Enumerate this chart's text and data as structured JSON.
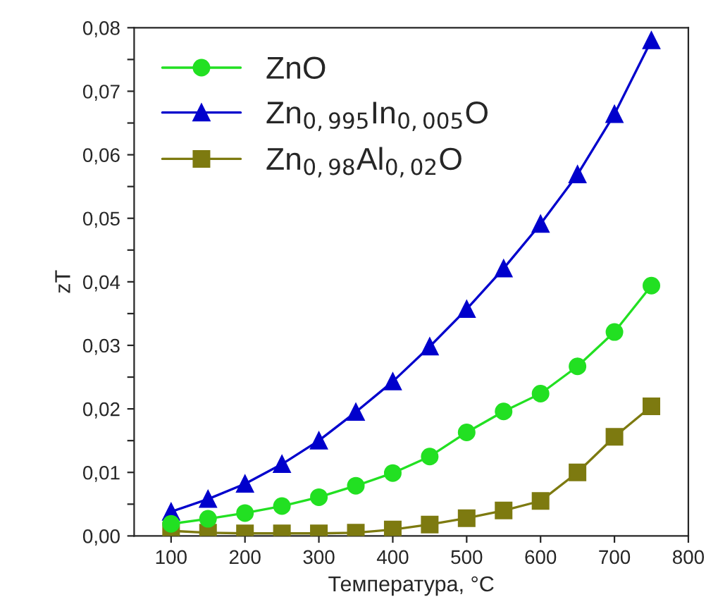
{
  "chart_data": {
    "type": "line",
    "xlabel": "Температура, °C",
    "ylabel": "zT",
    "x": [
      100,
      150,
      200,
      250,
      300,
      350,
      400,
      450,
      500,
      550,
      600,
      650,
      700,
      750
    ],
    "series": [
      {
        "name": "ZnO",
        "color": "#22e022",
        "marker": "circle",
        "values": [
          0.0019,
          0.0027,
          0.0036,
          0.0047,
          0.0061,
          0.0079,
          0.0099,
          0.0125,
          0.0163,
          0.0196,
          0.0224,
          0.0267,
          0.0321,
          0.0394
        ]
      },
      {
        "name": "Zn$_{0,995}$In$_{0,005}$O",
        "color": "#0000cc",
        "marker": "triangle",
        "values": [
          0.0038,
          0.0058,
          0.0082,
          0.0113,
          0.015,
          0.0195,
          0.0243,
          0.0298,
          0.0357,
          0.0421,
          0.0491,
          0.0569,
          0.0664,
          0.078
        ]
      },
      {
        "name": "Zn$_{0,98}$Al$_{0,02}$O",
        "color": "#7d7a10",
        "marker": "square",
        "values": [
          0.0008,
          0.0005,
          0.0004,
          0.0004,
          0.0004,
          0.0005,
          0.001,
          0.0018,
          0.0028,
          0.004,
          0.0055,
          0.01,
          0.0156,
          0.0204
        ]
      }
    ],
    "xlim": [
      50,
      800
    ],
    "xticks": [
      100,
      200,
      300,
      400,
      500,
      600,
      700,
      800
    ],
    "ylim": [
      0,
      0.08
    ],
    "yticks": [
      {
        "value": 0,
        "label": "0,00"
      },
      {
        "value": 0.005,
        "label": null
      },
      {
        "value": 0.01,
        "label": "0,01"
      },
      {
        "value": 0.015,
        "label": null
      },
      {
        "value": 0.02,
        "label": "0,02"
      },
      {
        "value": 0.025,
        "label": null
      },
      {
        "value": 0.03,
        "label": "0,03"
      },
      {
        "value": 0.035,
        "label": null
      },
      {
        "value": 0.04,
        "label": "0,04"
      },
      {
        "value": 0.045,
        "label": null
      },
      {
        "value": 0.05,
        "label": "0,05"
      },
      {
        "value": 0.055,
        "label": null
      },
      {
        "value": 0.06,
        "label": "0,06"
      },
      {
        "value": 0.065,
        "label": null
      },
      {
        "value": 0.07,
        "label": "0,07"
      },
      {
        "value": 0.075,
        "label": null
      },
      {
        "value": 0.08,
        "label": "0,08"
      }
    ],
    "grid": false,
    "legend": "top left",
    "line_style": "solid"
  }
}
